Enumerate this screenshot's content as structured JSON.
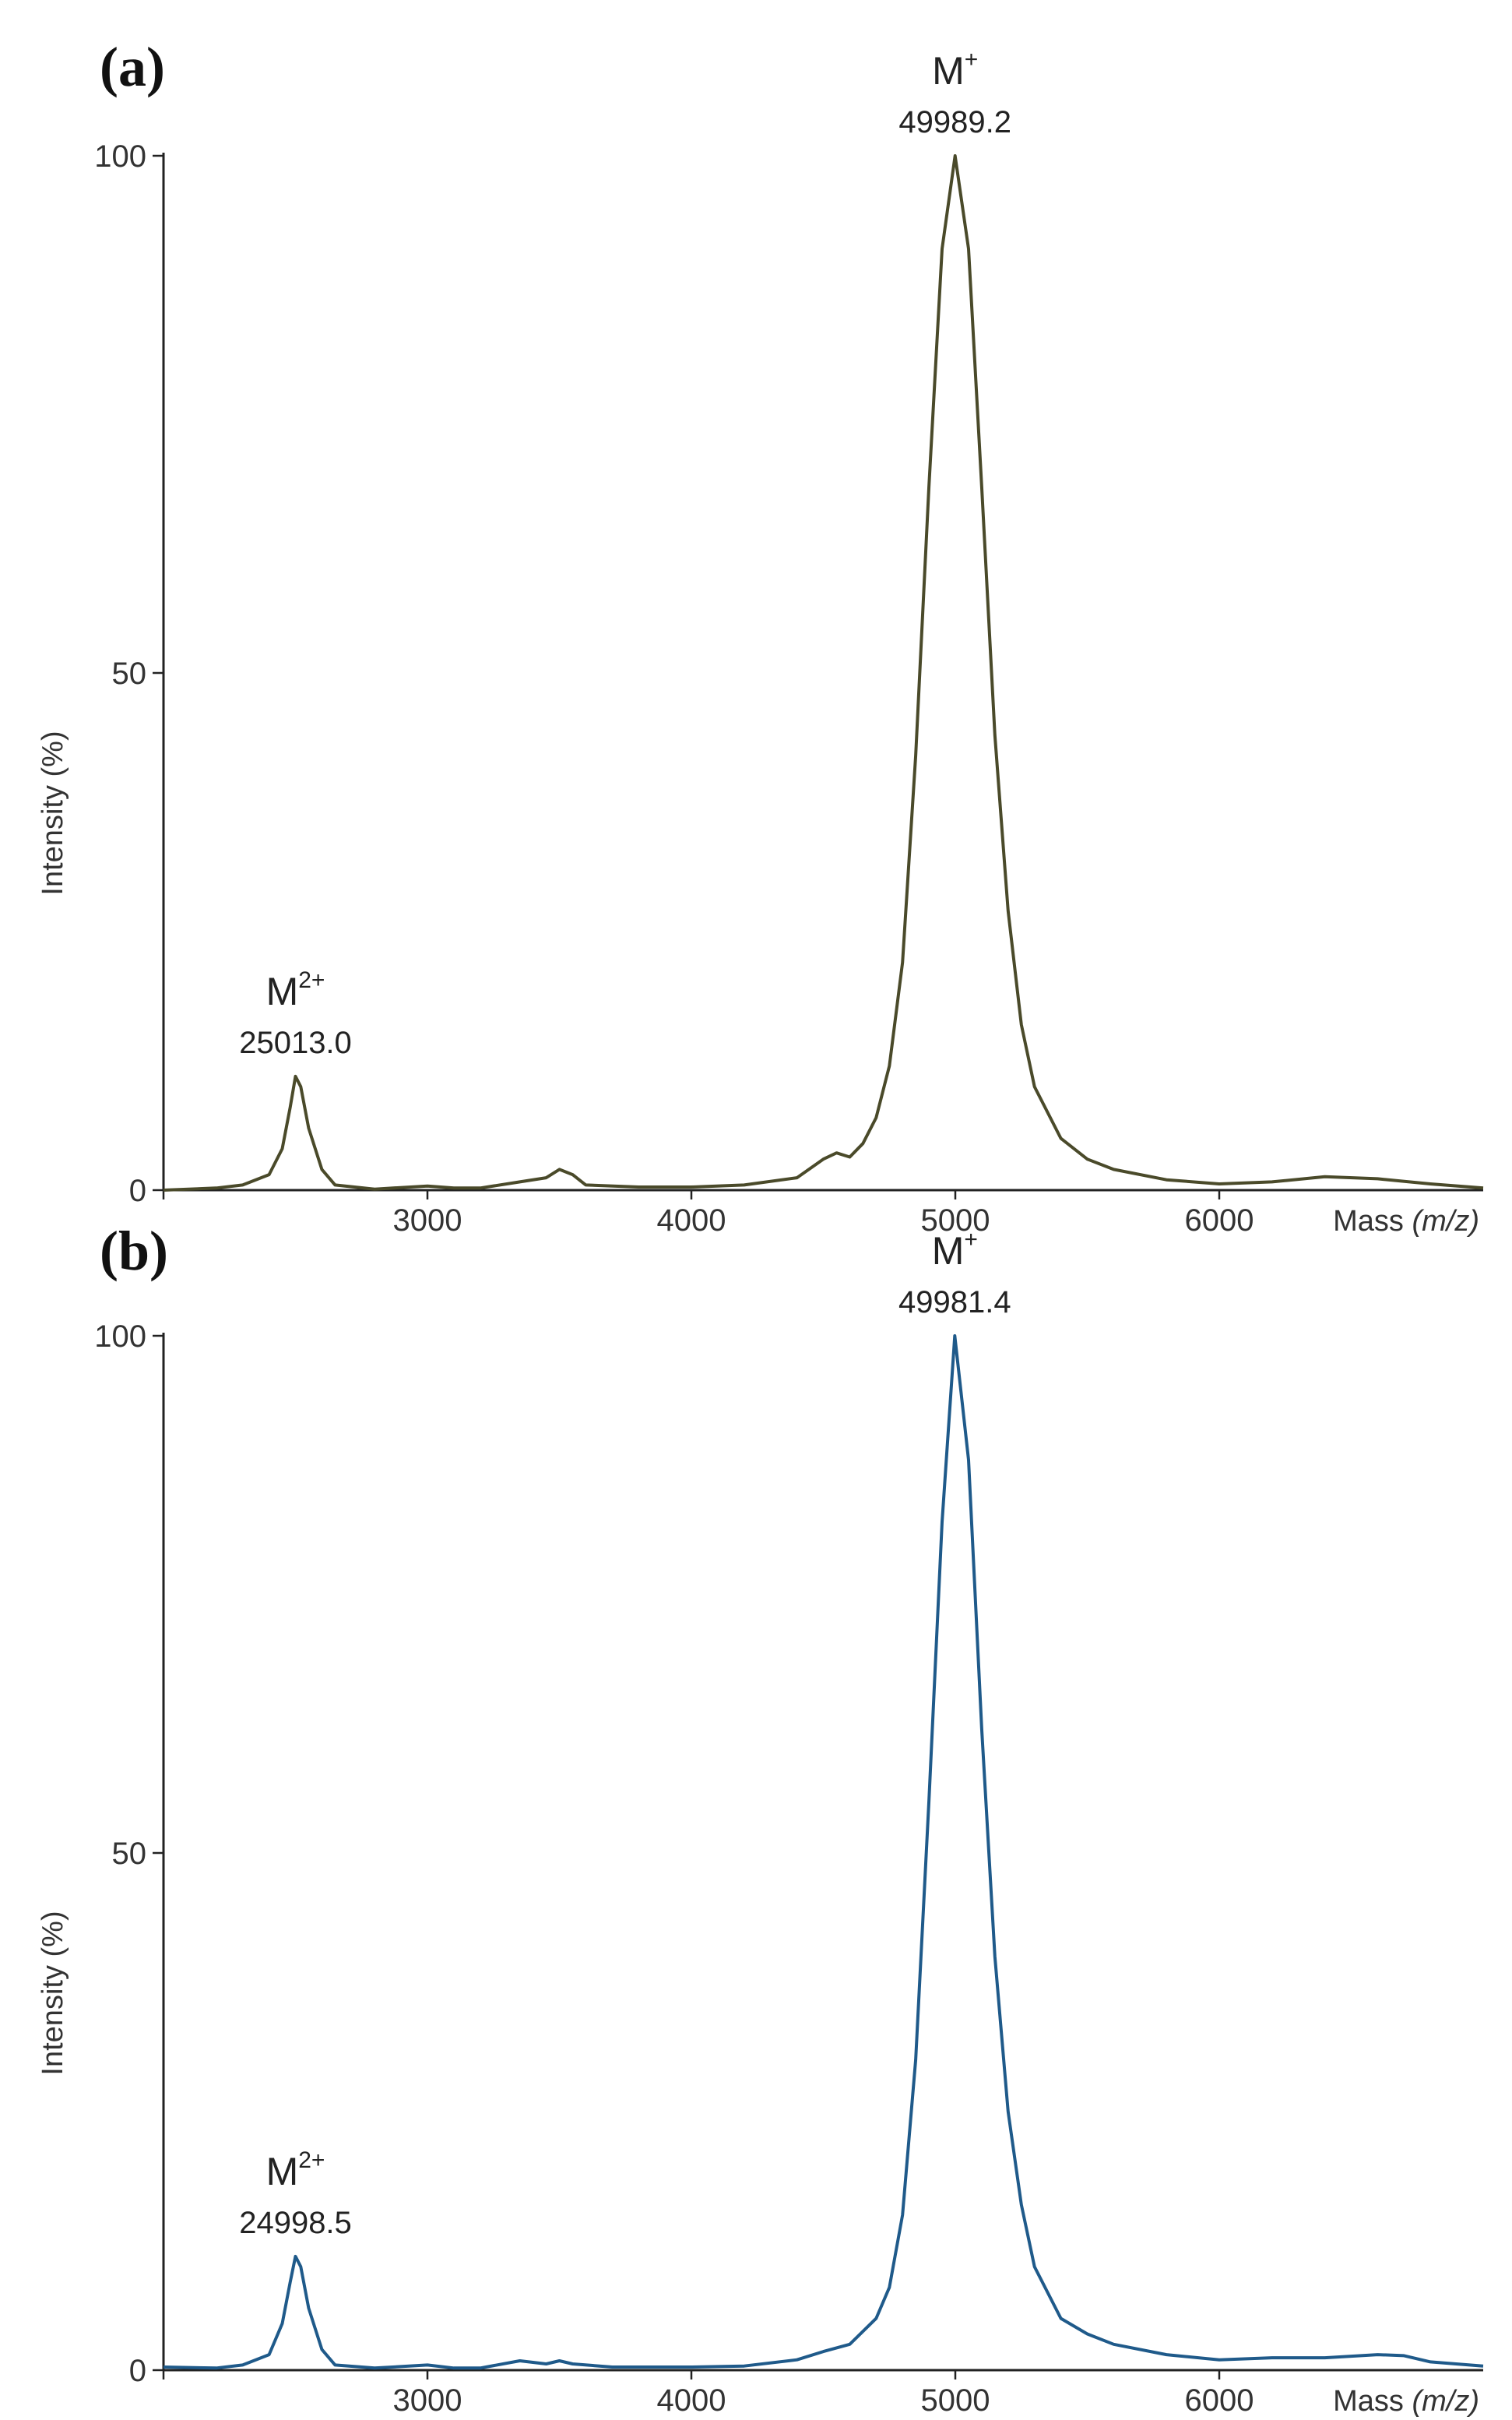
{
  "chart_data": [
    {
      "type": "line",
      "panel_label": "(a)",
      "title": "",
      "ylabel": "Intensity (%)",
      "xlabel_prefix": "Mass ",
      "xlabel_unit": "(m/z)",
      "xlim": [
        2000,
        7000
      ],
      "ylim": [
        0,
        100
      ],
      "x_ticks": [
        "3000",
        "4000",
        "5000",
        "6000"
      ],
      "y_ticks": [
        "0",
        "50",
        "100"
      ],
      "line_color": "#4a4a2a",
      "annotations": [
        {
          "ion": "M",
          "charge": "2+",
          "mass": "25013.0",
          "x": 2500,
          "y": 11
        },
        {
          "ion": "M",
          "charge": "+",
          "mass": "49989.2",
          "x": 4999,
          "y": 100
        }
      ],
      "series": [
        {
          "values": [
            [
              2000,
              0
            ],
            [
              2200,
              0.2
            ],
            [
              2300,
              0.5
            ],
            [
              2400,
              1.5
            ],
            [
              2450,
              4
            ],
            [
              2480,
              8
            ],
            [
              2500,
              11
            ],
            [
              2520,
              10
            ],
            [
              2550,
              6
            ],
            [
              2600,
              2
            ],
            [
              2650,
              0.5
            ],
            [
              2800,
              0.1
            ],
            [
              3000,
              0.4
            ],
            [
              3100,
              0.2
            ],
            [
              3200,
              0.2
            ],
            [
              3350,
              0.8
            ],
            [
              3450,
              1.2
            ],
            [
              3500,
              2
            ],
            [
              3550,
              1.5
            ],
            [
              3600,
              0.5
            ],
            [
              3800,
              0.3
            ],
            [
              4000,
              0.3
            ],
            [
              4200,
              0.5
            ],
            [
              4400,
              1.2
            ],
            [
              4500,
              3
            ],
            [
              4550,
              3.6
            ],
            [
              4600,
              3.2
            ],
            [
              4650,
              4.5
            ],
            [
              4700,
              7
            ],
            [
              4750,
              12
            ],
            [
              4800,
              22
            ],
            [
              4850,
              42
            ],
            [
              4900,
              68
            ],
            [
              4950,
              91
            ],
            [
              4999,
              100
            ],
            [
              5050,
              91
            ],
            [
              5100,
              68
            ],
            [
              5150,
              44
            ],
            [
              5200,
              27
            ],
            [
              5250,
              16
            ],
            [
              5300,
              10
            ],
            [
              5400,
              5
            ],
            [
              5500,
              3
            ],
            [
              5600,
              2
            ],
            [
              5800,
              1
            ],
            [
              6000,
              0.6
            ],
            [
              6200,
              0.8
            ],
            [
              6400,
              1.3
            ],
            [
              6600,
              1.1
            ],
            [
              6800,
              0.6
            ],
            [
              7000,
              0.2
            ]
          ]
        }
      ]
    },
    {
      "type": "line",
      "panel_label": "(b)",
      "title": "",
      "ylabel": "Intensity (%)",
      "xlabel_prefix": "Mass ",
      "xlabel_unit": "(m/z)",
      "xlim": [
        2000,
        7000
      ],
      "ylim": [
        0,
        100
      ],
      "x_ticks": [
        "3000",
        "4000",
        "5000",
        "6000"
      ],
      "y_ticks": [
        "0",
        "50",
        "100"
      ],
      "line_color": "#1f5a8a",
      "annotations": [
        {
          "ion": "M",
          "charge": "2+",
          "mass": "24998.5",
          "x": 2500,
          "y": 11
        },
        {
          "ion": "M",
          "charge": "+",
          "mass": "49981.4",
          "x": 4998,
          "y": 100
        }
      ],
      "series": [
        {
          "values": [
            [
              2000,
              0.3
            ],
            [
              2200,
              0.2
            ],
            [
              2300,
              0.5
            ],
            [
              2400,
              1.5
            ],
            [
              2450,
              4.5
            ],
            [
              2480,
              8.5
            ],
            [
              2500,
              11
            ],
            [
              2520,
              10
            ],
            [
              2550,
              6
            ],
            [
              2600,
              2
            ],
            [
              2650,
              0.5
            ],
            [
              2800,
              0.2
            ],
            [
              3000,
              0.5
            ],
            [
              3100,
              0.2
            ],
            [
              3200,
              0.2
            ],
            [
              3350,
              0.9
            ],
            [
              3450,
              0.6
            ],
            [
              3500,
              0.9
            ],
            [
              3550,
              0.6
            ],
            [
              3700,
              0.3
            ],
            [
              4000,
              0.3
            ],
            [
              4200,
              0.4
            ],
            [
              4400,
              1
            ],
            [
              4500,
              1.8
            ],
            [
              4600,
              2.5
            ],
            [
              4700,
              5
            ],
            [
              4750,
              8
            ],
            [
              4800,
              15
            ],
            [
              4850,
              30
            ],
            [
              4900,
              55
            ],
            [
              4950,
              82
            ],
            [
              4998,
              100
            ],
            [
              5050,
              88
            ],
            [
              5100,
              62
            ],
            [
              5150,
              40
            ],
            [
              5200,
              25
            ],
            [
              5250,
              16
            ],
            [
              5300,
              10
            ],
            [
              5400,
              5
            ],
            [
              5500,
              3.5
            ],
            [
              5600,
              2.5
            ],
            [
              5800,
              1.5
            ],
            [
              6000,
              1
            ],
            [
              6200,
              1.2
            ],
            [
              6400,
              1.2
            ],
            [
              6600,
              1.5
            ],
            [
              6700,
              1.4
            ],
            [
              6800,
              0.8
            ],
            [
              7000,
              0.4
            ]
          ]
        }
      ]
    }
  ]
}
